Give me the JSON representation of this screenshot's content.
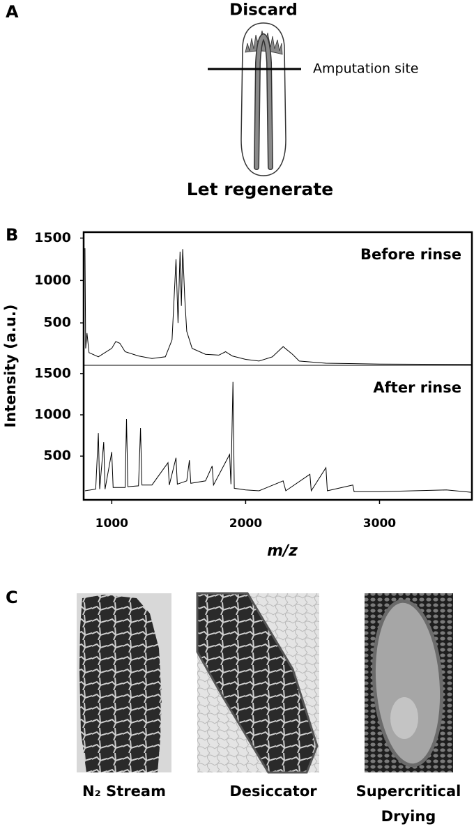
{
  "panel_labels": [
    "A",
    "B",
    "C"
  ],
  "diagram": {
    "top_label": "Discard",
    "cut_label": "Amputation site",
    "bottom_label": "Let regenerate"
  },
  "chart_data": [
    {
      "type": "line",
      "annotation": "Before rinse",
      "ylabel": "Intensity (a.u.)",
      "color": "#000000",
      "x": [
        800,
        805,
        815,
        830,
        900,
        1000,
        1030,
        1060,
        1100,
        1200,
        1300,
        1400,
        1450,
        1480,
        1495,
        1510,
        1520,
        1530,
        1545,
        1560,
        1600,
        1700,
        1800,
        1850,
        1900,
        2000,
        2100,
        2200,
        2280,
        2350,
        2400,
        2600,
        3000,
        3690
      ],
      "values": [
        1380,
        200,
        380,
        150,
        100,
        200,
        280,
        260,
        160,
        110,
        80,
        100,
        300,
        1250,
        500,
        1340,
        700,
        1370,
        800,
        400,
        200,
        130,
        120,
        160,
        110,
        70,
        50,
        100,
        220,
        130,
        50,
        25,
        15,
        10
      ],
      "xlim": [
        790,
        3690
      ],
      "ylim": [
        0,
        1570
      ],
      "yticks": [
        500,
        1000,
        1500
      ]
    },
    {
      "type": "line",
      "annotation": "After rinse",
      "xlabel": "m/z",
      "color": "#000000",
      "x": [
        800,
        880,
        900,
        910,
        940,
        950,
        1000,
        1010,
        1100,
        1110,
        1120,
        1200,
        1215,
        1225,
        1300,
        1420,
        1430,
        1480,
        1490,
        1560,
        1580,
        1590,
        1700,
        1750,
        1760,
        1880,
        1890,
        1905,
        1915,
        2000,
        2100,
        2280,
        2300,
        2480,
        2490,
        2600,
        2610,
        2800,
        2810,
        3000,
        3500,
        3690
      ],
      "values": [
        80,
        100,
        780,
        100,
        670,
        100,
        550,
        120,
        120,
        950,
        130,
        140,
        840,
        150,
        150,
        420,
        150,
        480,
        160,
        200,
        450,
        170,
        200,
        380,
        150,
        520,
        160,
        1400,
        110,
        90,
        80,
        200,
        80,
        280,
        80,
        360,
        80,
        150,
        70,
        70,
        90,
        60
      ],
      "xlim": [
        790,
        3690
      ],
      "ylim": [
        -30,
        1600
      ],
      "yticks": [
        500,
        1000,
        1500
      ],
      "xticks": [
        1000,
        2000,
        3000
      ]
    }
  ],
  "images": [
    {
      "caption_lines": [
        "N₂ Stream"
      ]
    },
    {
      "caption_lines": [
        "Desiccator"
      ]
    },
    {
      "caption_lines": [
        "Supercritical",
        "Drying"
      ]
    }
  ]
}
